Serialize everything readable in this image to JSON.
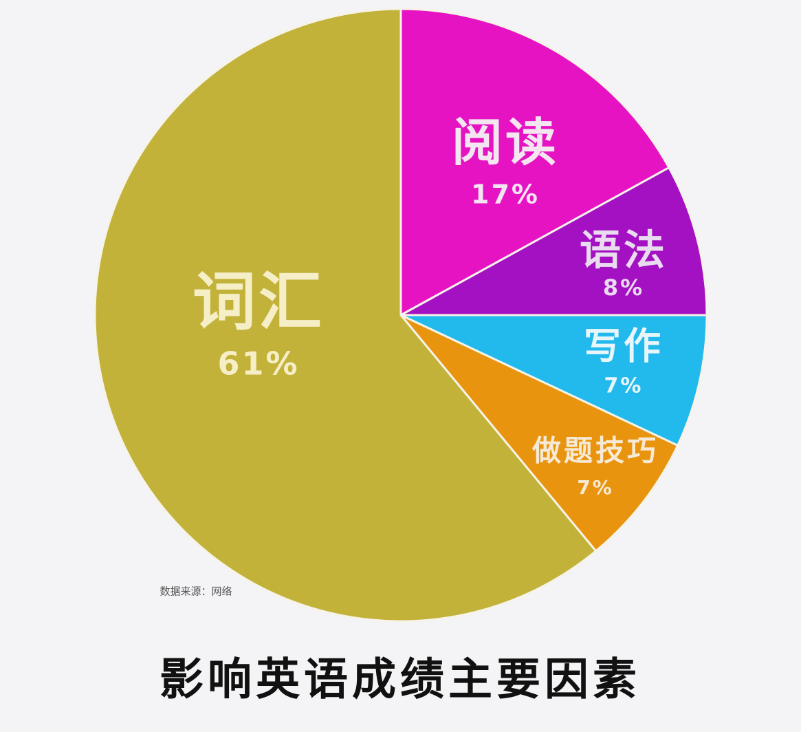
{
  "chart_data": {
    "type": "pie",
    "title": "影响英语成绩主要因素",
    "note": "数据来源：网络",
    "categories": [
      "阅读",
      "语法",
      "写作",
      "做题技巧",
      "词汇"
    ],
    "values": [
      17,
      8,
      7,
      7,
      61
    ],
    "value_labels": [
      "17%",
      "8%",
      "7%",
      "7%",
      "61%"
    ],
    "colors": [
      "#e613c3",
      "#a411c2",
      "#22b9ec",
      "#e8940e",
      "#c2b23a"
    ]
  }
}
